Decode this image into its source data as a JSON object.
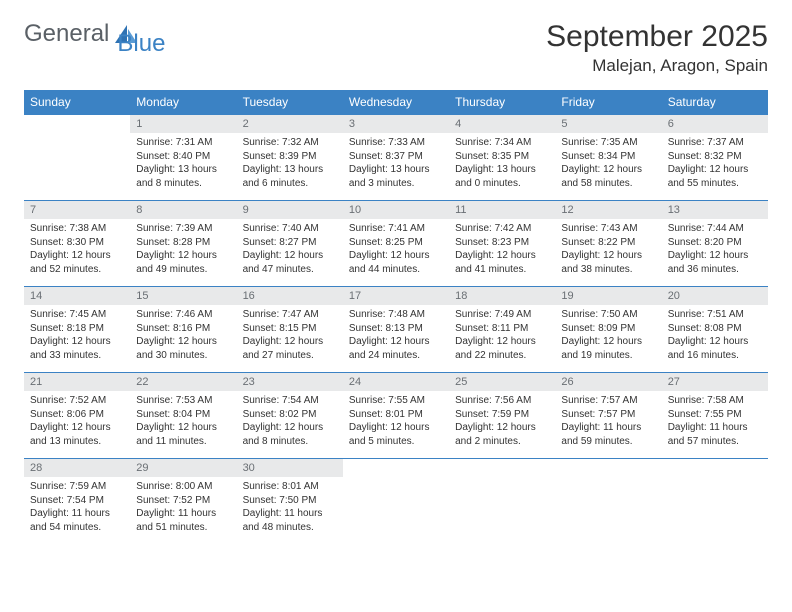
{
  "brand": {
    "part1": "General",
    "part2": "Blue"
  },
  "title": "September 2025",
  "location": "Malejan, Aragon, Spain",
  "colors": {
    "header_bg": "#3b82c4",
    "header_fg": "#ffffff",
    "daynum_bg": "#e8e9ea",
    "text": "#333333"
  },
  "weekdays": [
    "Sunday",
    "Monday",
    "Tuesday",
    "Wednesday",
    "Thursday",
    "Friday",
    "Saturday"
  ],
  "weeks": [
    [
      {
        "n": "",
        "sunrise": "",
        "sunset": "",
        "daylight": ""
      },
      {
        "n": "1",
        "sunrise": "Sunrise: 7:31 AM",
        "sunset": "Sunset: 8:40 PM",
        "daylight": "Daylight: 13 hours and 8 minutes."
      },
      {
        "n": "2",
        "sunrise": "Sunrise: 7:32 AM",
        "sunset": "Sunset: 8:39 PM",
        "daylight": "Daylight: 13 hours and 6 minutes."
      },
      {
        "n": "3",
        "sunrise": "Sunrise: 7:33 AM",
        "sunset": "Sunset: 8:37 PM",
        "daylight": "Daylight: 13 hours and 3 minutes."
      },
      {
        "n": "4",
        "sunrise": "Sunrise: 7:34 AM",
        "sunset": "Sunset: 8:35 PM",
        "daylight": "Daylight: 13 hours and 0 minutes."
      },
      {
        "n": "5",
        "sunrise": "Sunrise: 7:35 AM",
        "sunset": "Sunset: 8:34 PM",
        "daylight": "Daylight: 12 hours and 58 minutes."
      },
      {
        "n": "6",
        "sunrise": "Sunrise: 7:37 AM",
        "sunset": "Sunset: 8:32 PM",
        "daylight": "Daylight: 12 hours and 55 minutes."
      }
    ],
    [
      {
        "n": "7",
        "sunrise": "Sunrise: 7:38 AM",
        "sunset": "Sunset: 8:30 PM",
        "daylight": "Daylight: 12 hours and 52 minutes."
      },
      {
        "n": "8",
        "sunrise": "Sunrise: 7:39 AM",
        "sunset": "Sunset: 8:28 PM",
        "daylight": "Daylight: 12 hours and 49 minutes."
      },
      {
        "n": "9",
        "sunrise": "Sunrise: 7:40 AM",
        "sunset": "Sunset: 8:27 PM",
        "daylight": "Daylight: 12 hours and 47 minutes."
      },
      {
        "n": "10",
        "sunrise": "Sunrise: 7:41 AM",
        "sunset": "Sunset: 8:25 PM",
        "daylight": "Daylight: 12 hours and 44 minutes."
      },
      {
        "n": "11",
        "sunrise": "Sunrise: 7:42 AM",
        "sunset": "Sunset: 8:23 PM",
        "daylight": "Daylight: 12 hours and 41 minutes."
      },
      {
        "n": "12",
        "sunrise": "Sunrise: 7:43 AM",
        "sunset": "Sunset: 8:22 PM",
        "daylight": "Daylight: 12 hours and 38 minutes."
      },
      {
        "n": "13",
        "sunrise": "Sunrise: 7:44 AM",
        "sunset": "Sunset: 8:20 PM",
        "daylight": "Daylight: 12 hours and 36 minutes."
      }
    ],
    [
      {
        "n": "14",
        "sunrise": "Sunrise: 7:45 AM",
        "sunset": "Sunset: 8:18 PM",
        "daylight": "Daylight: 12 hours and 33 minutes."
      },
      {
        "n": "15",
        "sunrise": "Sunrise: 7:46 AM",
        "sunset": "Sunset: 8:16 PM",
        "daylight": "Daylight: 12 hours and 30 minutes."
      },
      {
        "n": "16",
        "sunrise": "Sunrise: 7:47 AM",
        "sunset": "Sunset: 8:15 PM",
        "daylight": "Daylight: 12 hours and 27 minutes."
      },
      {
        "n": "17",
        "sunrise": "Sunrise: 7:48 AM",
        "sunset": "Sunset: 8:13 PM",
        "daylight": "Daylight: 12 hours and 24 minutes."
      },
      {
        "n": "18",
        "sunrise": "Sunrise: 7:49 AM",
        "sunset": "Sunset: 8:11 PM",
        "daylight": "Daylight: 12 hours and 22 minutes."
      },
      {
        "n": "19",
        "sunrise": "Sunrise: 7:50 AM",
        "sunset": "Sunset: 8:09 PM",
        "daylight": "Daylight: 12 hours and 19 minutes."
      },
      {
        "n": "20",
        "sunrise": "Sunrise: 7:51 AM",
        "sunset": "Sunset: 8:08 PM",
        "daylight": "Daylight: 12 hours and 16 minutes."
      }
    ],
    [
      {
        "n": "21",
        "sunrise": "Sunrise: 7:52 AM",
        "sunset": "Sunset: 8:06 PM",
        "daylight": "Daylight: 12 hours and 13 minutes."
      },
      {
        "n": "22",
        "sunrise": "Sunrise: 7:53 AM",
        "sunset": "Sunset: 8:04 PM",
        "daylight": "Daylight: 12 hours and 11 minutes."
      },
      {
        "n": "23",
        "sunrise": "Sunrise: 7:54 AM",
        "sunset": "Sunset: 8:02 PM",
        "daylight": "Daylight: 12 hours and 8 minutes."
      },
      {
        "n": "24",
        "sunrise": "Sunrise: 7:55 AM",
        "sunset": "Sunset: 8:01 PM",
        "daylight": "Daylight: 12 hours and 5 minutes."
      },
      {
        "n": "25",
        "sunrise": "Sunrise: 7:56 AM",
        "sunset": "Sunset: 7:59 PM",
        "daylight": "Daylight: 12 hours and 2 minutes."
      },
      {
        "n": "26",
        "sunrise": "Sunrise: 7:57 AM",
        "sunset": "Sunset: 7:57 PM",
        "daylight": "Daylight: 11 hours and 59 minutes."
      },
      {
        "n": "27",
        "sunrise": "Sunrise: 7:58 AM",
        "sunset": "Sunset: 7:55 PM",
        "daylight": "Daylight: 11 hours and 57 minutes."
      }
    ],
    [
      {
        "n": "28",
        "sunrise": "Sunrise: 7:59 AM",
        "sunset": "Sunset: 7:54 PM",
        "daylight": "Daylight: 11 hours and 54 minutes."
      },
      {
        "n": "29",
        "sunrise": "Sunrise: 8:00 AM",
        "sunset": "Sunset: 7:52 PM",
        "daylight": "Daylight: 11 hours and 51 minutes."
      },
      {
        "n": "30",
        "sunrise": "Sunrise: 8:01 AM",
        "sunset": "Sunset: 7:50 PM",
        "daylight": "Daylight: 11 hours and 48 minutes."
      },
      {
        "n": "",
        "sunrise": "",
        "sunset": "",
        "daylight": ""
      },
      {
        "n": "",
        "sunrise": "",
        "sunset": "",
        "daylight": ""
      },
      {
        "n": "",
        "sunrise": "",
        "sunset": "",
        "daylight": ""
      },
      {
        "n": "",
        "sunrise": "",
        "sunset": "",
        "daylight": ""
      }
    ]
  ]
}
